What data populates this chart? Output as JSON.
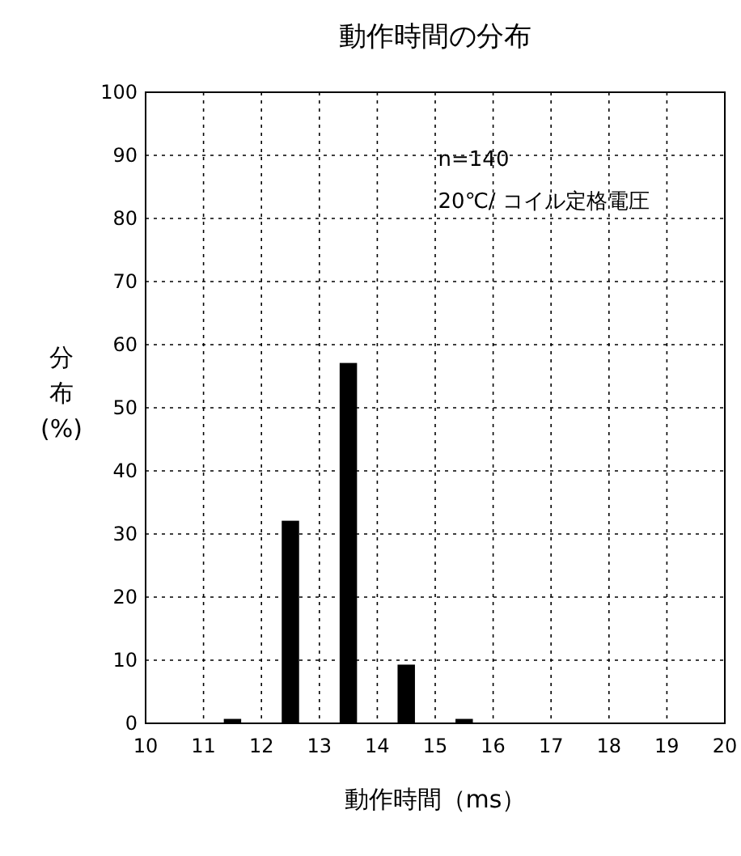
{
  "chart_data": {
    "type": "bar",
    "title": "動作時間の分布",
    "xlabel": "動作時間（ms）",
    "ylabel": "分布(%)",
    "x": [
      11.5,
      12.5,
      13.5,
      14.5,
      15.5
    ],
    "values": [
      0.7,
      32.1,
      57.1,
      9.3,
      0.7
    ],
    "color": "#000000",
    "xlim": [
      10,
      20
    ],
    "xticks": [
      10,
      11,
      12,
      13,
      14,
      15,
      16,
      17,
      18,
      19,
      20
    ],
    "ylim": [
      0,
      100
    ],
    "yticks": [
      0,
      10,
      20,
      30,
      40,
      50,
      60,
      70,
      80,
      90,
      100
    ],
    "grid": true,
    "line_style": "dotted",
    "annotations": [
      "n=140",
      "20℃/ コイル定格電圧"
    ]
  }
}
